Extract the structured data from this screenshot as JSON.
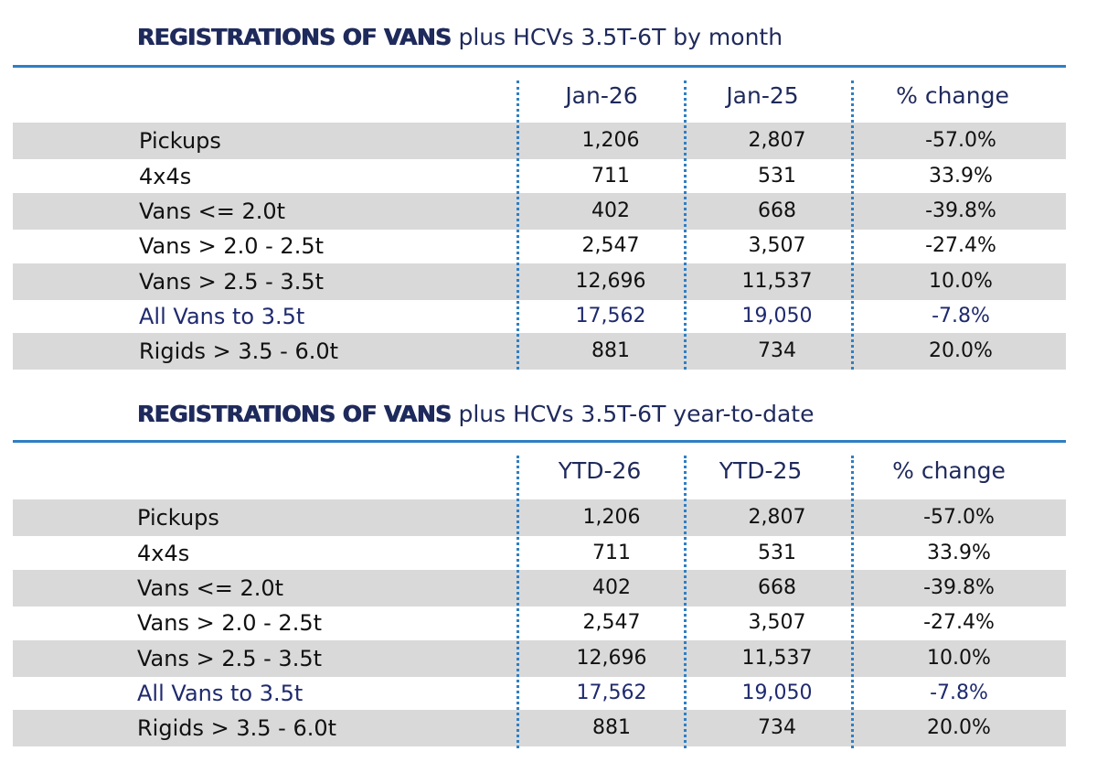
{
  "monthly": {
    "title_bold": "REGISTRATIONS OF VANS",
    "title_rest": "plus HCVs 3.5T-6T by month",
    "columns": [
      "Jan-26",
      "Jan-25",
      "% change"
    ],
    "rows": [
      {
        "label": "Pickups",
        "v1": "1,206",
        "v2": "2,807",
        "chg": "-57.0%"
      },
      {
        "label": "4x4s",
        "v1": "711",
        "v2": "531",
        "chg": "33.9%"
      },
      {
        "label": "Vans <= 2.0t",
        "v1": "402",
        "v2": "668",
        "chg": "-39.8%"
      },
      {
        "label": "Vans > 2.0 - 2.5t",
        "v1": "2,547",
        "v2": "3,507",
        "chg": "-27.4%"
      },
      {
        "label": "Vans > 2.5 - 3.5t",
        "v1": "12,696",
        "v2": "11,537",
        "chg": "10.0%"
      },
      {
        "label": "All Vans to 3.5t",
        "v1": "17,562",
        "v2": "19,050",
        "chg": "-7.8%"
      },
      {
        "label": "Rigids > 3.5 - 6.0t",
        "v1": "881",
        "v2": "734",
        "chg": "20.0%"
      }
    ]
  },
  "ytd": {
    "title_bold": "REGISTRATIONS OF VANS",
    "title_rest": "plus HCVs 3.5T-6T year-to-date",
    "columns": [
      "YTD-26",
      "YTD-25",
      "% change"
    ],
    "rows": [
      {
        "label": "Pickups",
        "v1": "1,206",
        "v2": "2,807",
        "chg": "-57.0%"
      },
      {
        "label": "4x4s",
        "v1": "711",
        "v2": "531",
        "chg": "33.9%"
      },
      {
        "label": "Vans <= 2.0t",
        "v1": "402",
        "v2": "668",
        "chg": "-39.8%"
      },
      {
        "label": "Vans > 2.0 - 2.5t",
        "v1": "2,547",
        "v2": "3,507",
        "chg": "-27.4%"
      },
      {
        "label": "Vans > 2.5 - 3.5t",
        "v1": "12,696",
        "v2": "11,537",
        "chg": "10.0%"
      },
      {
        "label": "All Vans to 3.5t",
        "v1": "17,562",
        "v2": "19,050",
        "chg": "-7.8%"
      },
      {
        "label": "Rigids > 3.5 - 6.0t",
        "v1": "881",
        "v2": "734",
        "chg": "20.0%"
      }
    ]
  },
  "highlight_color": "#1f2a6e",
  "rule_color": "#2f7fc3",
  "shade_color": "#d9d9d9"
}
